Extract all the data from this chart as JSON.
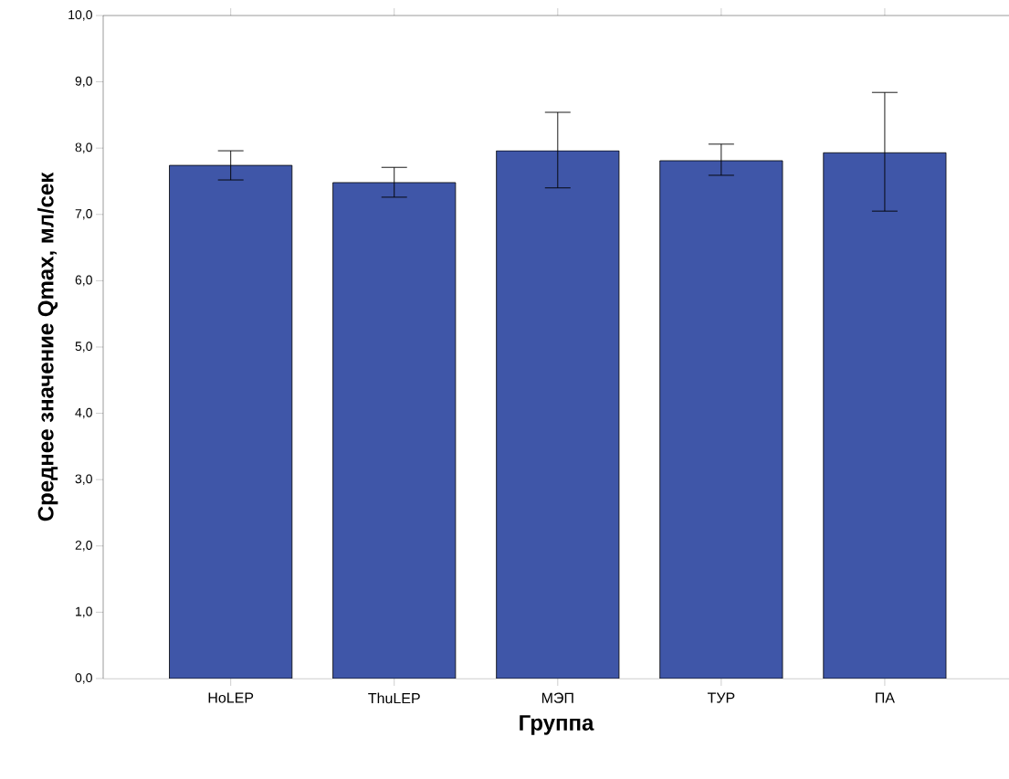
{
  "chart_data": {
    "type": "bar",
    "xlabel": "Группа",
    "ylabel": "Среднее значение Qmax, мл/сек",
    "categories": [
      "HoLEP",
      "ThuLEP",
      "МЭП",
      "ТУР",
      "ПА"
    ],
    "values": [
      7.74,
      7.48,
      7.96,
      7.81,
      7.93
    ],
    "errors": [
      [
        7.52,
        7.96
      ],
      [
        7.26,
        7.71
      ],
      [
        7.4,
        8.54
      ],
      [
        7.59,
        8.06
      ],
      [
        7.05,
        8.84
      ]
    ],
    "color": "#3f56a8",
    "ylim": [
      0,
      10
    ],
    "yticks": [
      {
        "value": 0,
        "label": "0,0"
      },
      {
        "value": 1,
        "label": "1,0"
      },
      {
        "value": 2,
        "label": "2,0"
      },
      {
        "value": 3,
        "label": "3,0"
      },
      {
        "value": 4,
        "label": "4,0"
      },
      {
        "value": 5,
        "label": "5,0"
      },
      {
        "value": 6,
        "label": "6,0"
      },
      {
        "value": 7,
        "label": "7,0"
      },
      {
        "value": 8,
        "label": "8,0"
      },
      {
        "value": 9,
        "label": "9,0"
      },
      {
        "value": 10,
        "label": "10,0"
      }
    ],
    "grid": false
  }
}
